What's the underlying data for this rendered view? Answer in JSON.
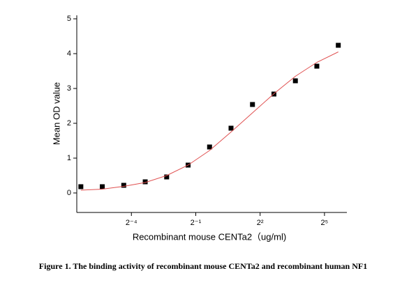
{
  "chart_data": {
    "type": "scatter",
    "x_label": "Recombinant mouse CENTa2（ug/ml)",
    "y_label": "Mean OD value",
    "caption": "Figure 1. The binding activity of recombinant mouse CENTa2 and recombinant human NF1",
    "x": [
      0.01220703125,
      0.0244140625,
      0.048828125,
      0.09765625,
      0.1953125,
      0.390625,
      0.78125,
      1.5625,
      3.125,
      6.25,
      12.5,
      25,
      50
    ],
    "series": [
      {
        "color": "#000000",
        "marker": "square",
        "values": [
          0.18,
          0.18,
          0.22,
          0.32,
          0.46,
          0.8,
          1.32,
          1.86,
          2.54,
          2.84,
          3.22,
          3.64,
          4.24
        ]
      },
      {
        "color": "#e05050",
        "marker": "line",
        "values": [
          0.08,
          0.11,
          0.19,
          0.3,
          0.5,
          0.8,
          1.22,
          1.75,
          2.3,
          2.85,
          3.35,
          3.75,
          4.05
        ]
      }
    ],
    "xlog": 2,
    "xlim": [
      0.0107,
      66
    ],
    "xticks": [
      {
        "value": 0.0625,
        "label": "2⁻⁴"
      },
      {
        "value": 0.5,
        "label": "2⁻¹"
      },
      {
        "value": 4,
        "label": "2²"
      },
      {
        "value": 32,
        "label": "2⁵"
      }
    ],
    "ylim": [
      -0.56,
      5.1
    ],
    "yticks": [
      0,
      1,
      2,
      3,
      4,
      5
    ]
  }
}
